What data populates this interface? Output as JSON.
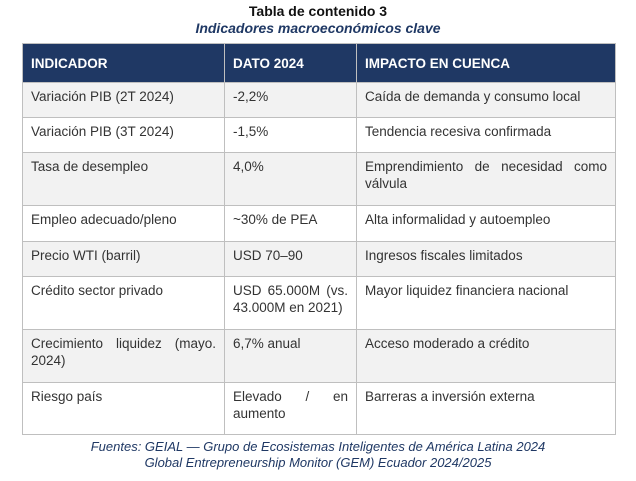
{
  "caption": {
    "label": "Tabla de contenido 3",
    "title": "Indicadores macroeconómicos clave"
  },
  "table": {
    "headers": [
      "INDICADOR",
      "DATO 2024",
      "IMPACTO EN CUENCA"
    ],
    "rows": [
      [
        "Variación PIB (2T 2024)",
        "-2,2%",
        "Caída de demanda y consumo local"
      ],
      [
        "Variación PIB (3T 2024)",
        "-1,5%",
        "Tendencia recesiva confirmada"
      ],
      [
        "Tasa de desempleo",
        "4,0%",
        "Emprendimiento de necesidad como válvula"
      ],
      [
        "Empleo adecuado/pleno",
        "~30% de PEA",
        "Alta informalidad y autoempleo"
      ],
      [
        "Precio WTI (barril)",
        "USD 70–90",
        "Ingresos fiscales limitados"
      ],
      [
        "Crédito sector privado",
        "USD 65.000M (vs. 43.000M en 2021)",
        "Mayor liquidez financiera nacional"
      ],
      [
        "Crecimiento liquidez (mayo. 2024)",
        "6,7% anual",
        "Acceso moderado a crédito"
      ],
      [
        "Riesgo país",
        "Elevado / en aumento",
        "Barreras a inversión externa"
      ]
    ]
  },
  "sources": {
    "line1": "Fuentes: GEIAL — Grupo de Ecosistemas Inteligentes de América Latina 2024",
    "line2": "Global Entrepreneurship Monitor (GEM) Ecuador 2024/2025"
  }
}
